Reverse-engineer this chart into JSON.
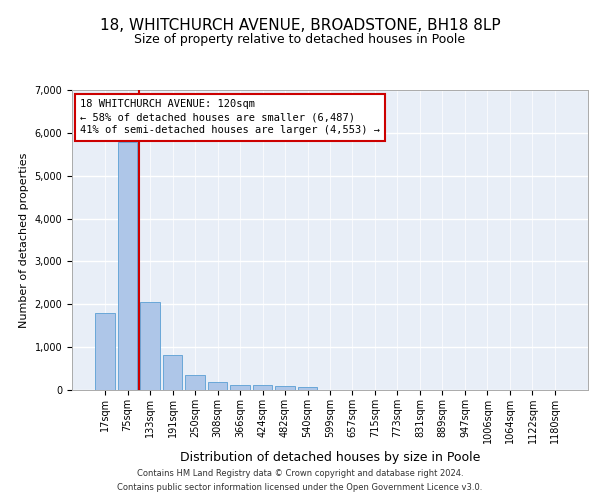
{
  "title1": "18, WHITCHURCH AVENUE, BROADSTONE, BH18 8LP",
  "title2": "Size of property relative to detached houses in Poole",
  "xlabel": "Distribution of detached houses by size in Poole",
  "ylabel": "Number of detached properties",
  "footnote1": "Contains HM Land Registry data © Crown copyright and database right 2024.",
  "footnote2": "Contains public sector information licensed under the Open Government Licence v3.0.",
  "bar_labels": [
    "17sqm",
    "75sqm",
    "133sqm",
    "191sqm",
    "250sqm",
    "308sqm",
    "366sqm",
    "424sqm",
    "482sqm",
    "540sqm",
    "599sqm",
    "657sqm",
    "715sqm",
    "773sqm",
    "831sqm",
    "889sqm",
    "947sqm",
    "1006sqm",
    "1064sqm",
    "1122sqm",
    "1180sqm"
  ],
  "bar_values": [
    1790,
    5780,
    2060,
    820,
    345,
    190,
    115,
    110,
    90,
    70,
    0,
    0,
    0,
    0,
    0,
    0,
    0,
    0,
    0,
    0,
    0
  ],
  "bar_color": "#aec6e8",
  "bar_edge_color": "#5a9fd4",
  "vline_color": "#cc0000",
  "annotation_text": "18 WHITCHURCH AVENUE: 120sqm\n← 58% of detached houses are smaller (6,487)\n41% of semi-detached houses are larger (4,553) →",
  "annotation_box_color": "#ffffff",
  "annotation_box_edge": "#cc0000",
  "ylim": [
    0,
    7000
  ],
  "yticks": [
    0,
    1000,
    2000,
    3000,
    4000,
    5000,
    6000,
    7000
  ],
  "background_color": "#e8eef7",
  "grid_color": "#ffffff",
  "title1_fontsize": 11,
  "title2_fontsize": 9,
  "xlabel_fontsize": 9,
  "ylabel_fontsize": 8,
  "tick_fontsize": 7,
  "annotation_fontsize": 7.5,
  "footnote_fontsize": 6
}
